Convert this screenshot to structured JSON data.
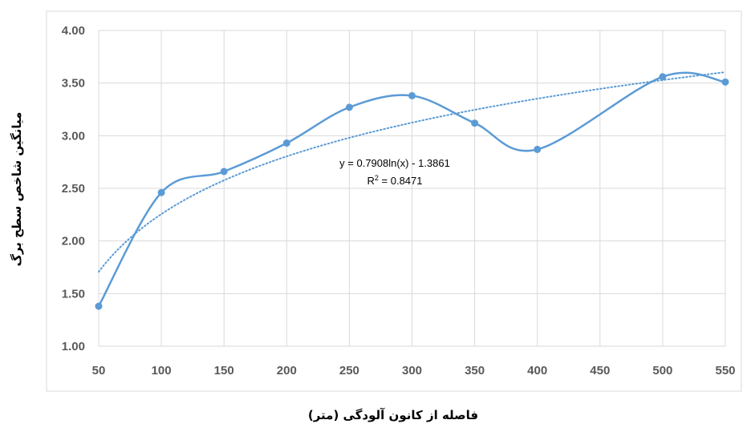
{
  "chart_data": {
    "type": "line",
    "xlabel": "فاصله از کانون آلودگی (متر)",
    "ylabel": "میانگین شاخص سطح برگ",
    "x": [
      50,
      100,
      150,
      200,
      250,
      300,
      350,
      400,
      500,
      550
    ],
    "series": [
      {
        "values": [
          1.38,
          2.46,
          2.66,
          2.93,
          3.27,
          3.38,
          3.12,
          2.87,
          3.56,
          3.51
        ],
        "color": "#5b9bd5",
        "smooth": true,
        "markers": true
      }
    ],
    "trendline": {
      "type": "logarithmic",
      "a": 0.7908,
      "b": -1.3861,
      "equation": "y = 0.7908ln(x) - 1.3861",
      "r2_prefix": "R",
      "r2_exp": "2",
      "r2_suffix": " = 0.8471",
      "style": "dotted",
      "color": "#5b9bd5"
    },
    "xlim": [
      50,
      550
    ],
    "ylim": [
      1.0,
      4.0
    ],
    "xticks": [
      "50",
      "100",
      "150",
      "200",
      "250",
      "300",
      "350",
      "400",
      "450",
      "500",
      "550"
    ],
    "yticks": [
      "1.00",
      "1.50",
      "2.00",
      "2.50",
      "3.00",
      "3.50",
      "4.00"
    ],
    "grid": true,
    "legend": "none"
  }
}
